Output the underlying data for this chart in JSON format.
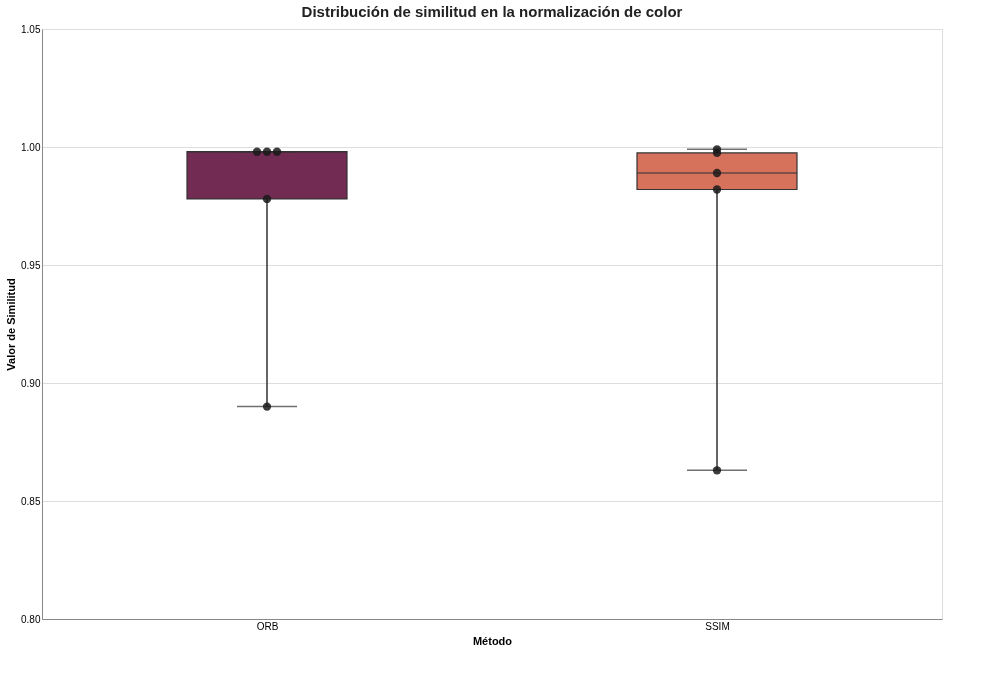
{
  "chart_data": {
    "type": "box",
    "title": "Distribución de similitud en la normalización de color",
    "xlabel": "Método",
    "ylabel": "Valor de Similitud",
    "categories": [
      "ORB",
      "SSIM"
    ],
    "series": [
      {
        "colors": [
          "#722b53",
          "#d6715c"
        ],
        "boxes": [
          {
            "low": 0.89,
            "q1": 0.978,
            "median": 0.998,
            "q3": 0.998,
            "high": 0.998
          },
          {
            "low": 0.863,
            "q1": 0.982,
            "median": 0.989,
            "q3": 0.9975,
            "high": 0.999
          }
        ]
      },
      {
        "type": "scatter",
        "color": "#1a1a1a",
        "x": [
          "ORB",
          "ORB",
          "ORB",
          "ORB",
          "ORB",
          "SSIM",
          "SSIM",
          "SSIM",
          "SSIM",
          "SSIM"
        ],
        "values": [
          0.998,
          0.998,
          0.998,
          0.978,
          0.89,
          0.999,
          0.9975,
          0.989,
          0.982,
          0.863
        ]
      }
    ],
    "ylim": [
      0.8,
      1.05
    ],
    "yticks": [
      {
        "value": 0.8,
        "label": "0.80"
      },
      0.85,
      {
        "value": 0.9,
        "label": "0.90"
      },
      0.95,
      {
        "value": 1.0,
        "label": "1.00"
      },
      1.05
    ],
    "grid": "y"
  }
}
